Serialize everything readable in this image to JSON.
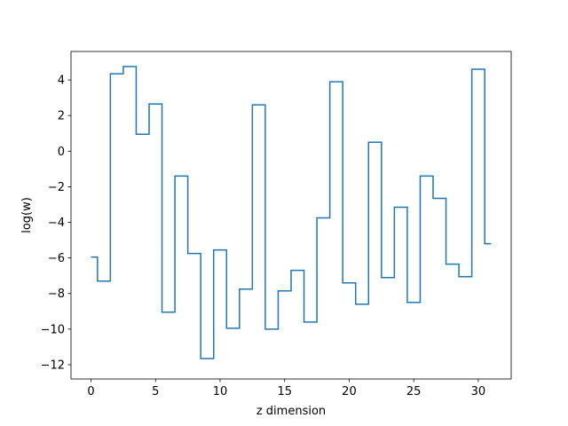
{
  "chart_data": {
    "type": "line",
    "drawstyle": "steps-mid",
    "title": "",
    "xlabel": "z dimension",
    "ylabel": "log(w)",
    "xlim": [
      -1.55,
      32.55
    ],
    "ylim": [
      -12.8,
      5.6
    ],
    "xticks": [
      0,
      5,
      10,
      15,
      20,
      25,
      30
    ],
    "yticks": [
      -12,
      -10,
      -8,
      -6,
      -4,
      -2,
      0,
      2,
      4
    ],
    "grid": false,
    "series": [
      {
        "color": "#1f77b4",
        "x": [
          0,
          1,
          2,
          3,
          4,
          5,
          6,
          7,
          8,
          9,
          10,
          11,
          12,
          13,
          14,
          15,
          16,
          17,
          18,
          19,
          20,
          21,
          22,
          23,
          24,
          25,
          26,
          27,
          28,
          29,
          30,
          31
        ],
        "values": [
          -5.95,
          -7.3,
          4.35,
          4.75,
          0.95,
          2.65,
          -9.05,
          -1.4,
          -5.75,
          -11.65,
          -5.55,
          -9.95,
          -7.75,
          2.6,
          -10.0,
          -7.85,
          -6.7,
          -9.6,
          -3.75,
          3.9,
          -7.4,
          -8.6,
          0.5,
          -7.1,
          -3.15,
          -8.5,
          -1.4,
          -2.65,
          -6.35,
          -7.05,
          4.6,
          -5.2
        ]
      }
    ]
  }
}
